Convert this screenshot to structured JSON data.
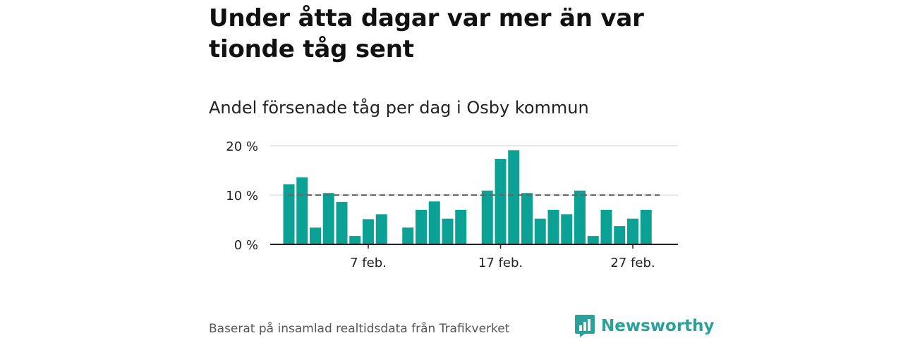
{
  "header": {
    "title": "Under åtta dagar var mer än var tionde tåg sent",
    "subtitle": "Andel försenade tåg per dag i Osby kommun"
  },
  "footer": {
    "source": "Baserat på insamlad realtidsdata från Trafikverket",
    "brand": "Newsworthy"
  },
  "colors": {
    "bar": "#0ba195",
    "reference_line": "#666666",
    "gridline": "#d9d9d9",
    "axis": "#222222",
    "brand": "#2aa29a"
  },
  "chart_data": {
    "type": "bar",
    "title": "Andel försenade tåg per dag i Osby kommun",
    "xlabel": "",
    "ylabel": "",
    "ylim": [
      0,
      20
    ],
    "y_ticks": [
      0,
      10,
      20
    ],
    "y_tick_labels": [
      "0 %",
      "10 %",
      "20 %"
    ],
    "grid": true,
    "legend": "none",
    "x_ticks": [
      7,
      17,
      27
    ],
    "x_tick_labels": [
      "7 feb.",
      "17 feb.",
      "27 feb."
    ],
    "reference_line": {
      "value": 10,
      "style": "dashed"
    },
    "days": [
      1,
      2,
      3,
      4,
      5,
      6,
      7,
      8,
      9,
      10,
      11,
      12,
      13,
      14,
      15,
      16,
      17,
      18,
      19,
      20,
      21,
      22,
      23,
      24,
      25,
      26,
      27,
      28
    ],
    "values": [
      12.2,
      13.6,
      3.4,
      10.4,
      8.6,
      1.7,
      5.1,
      6.1,
      null,
      3.4,
      7.0,
      8.7,
      5.2,
      7.0,
      null,
      10.9,
      17.3,
      19.1,
      10.4,
      5.2,
      7.0,
      6.1,
      10.9,
      1.7,
      7.0,
      3.7,
      5.2,
      7.0
    ],
    "series": [
      {
        "values": [
          12.2,
          13.6,
          3.4,
          10.4,
          8.6,
          1.7,
          5.1,
          6.1,
          null,
          3.4,
          7.0,
          8.7,
          5.2,
          7.0,
          null,
          10.9,
          17.3,
          19.1,
          10.4,
          5.2,
          7.0,
          6.1,
          10.9,
          1.7,
          7.0,
          3.7,
          5.2,
          7.0
        ]
      }
    ]
  }
}
